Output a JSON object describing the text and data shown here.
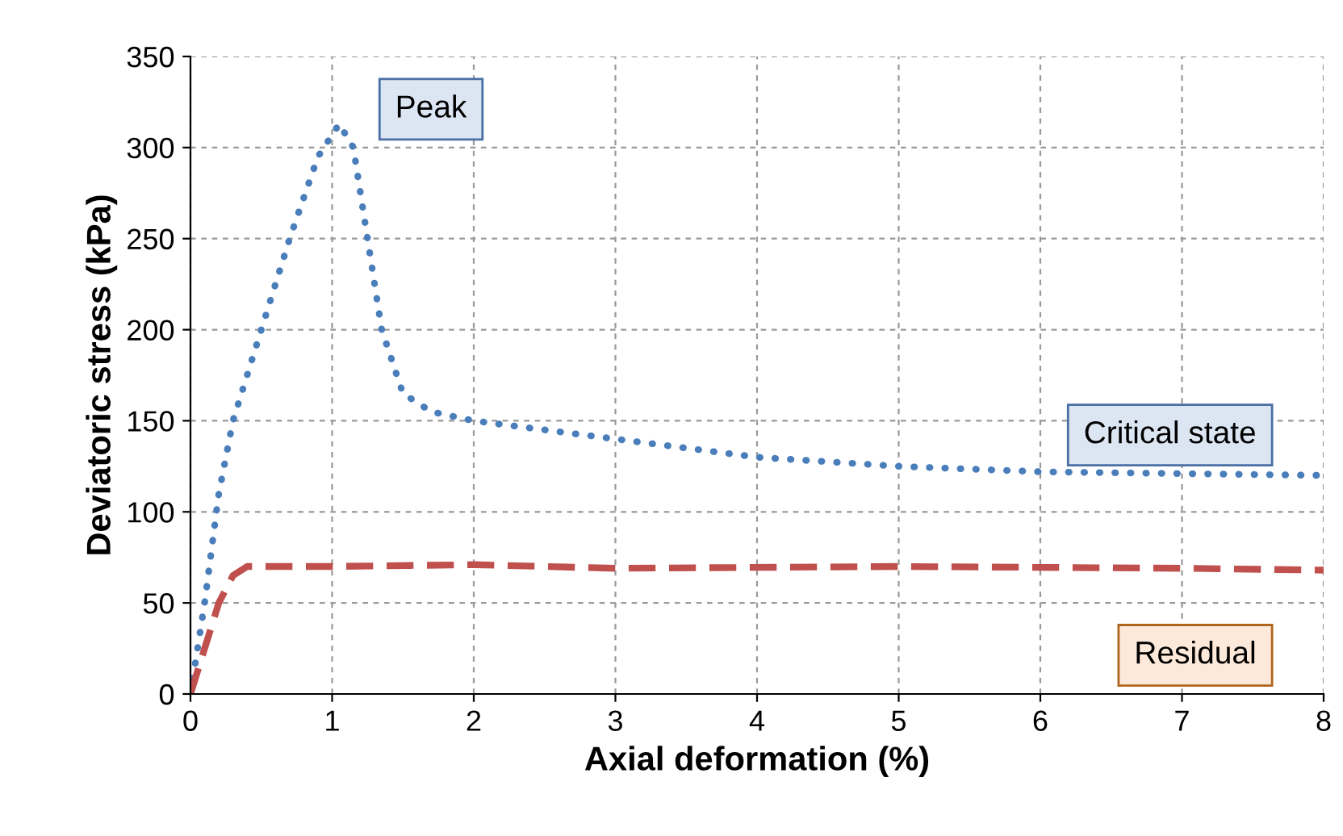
{
  "chart_data": {
    "type": "line",
    "xlabel": "Axial deformation (%)",
    "ylabel": "Deviatoric stress (kPa)",
    "xlim": [
      0,
      8
    ],
    "ylim": [
      0,
      350
    ],
    "xticks": [
      0,
      1,
      2,
      3,
      4,
      5,
      6,
      7,
      8
    ],
    "yticks": [
      0,
      50,
      100,
      150,
      200,
      250,
      300,
      350
    ],
    "grid": true,
    "series": [
      {
        "name": "Critical state",
        "color": "#4a7ebb",
        "line_style": "dotted",
        "x": [
          0,
          0.1,
          0.2,
          0.3,
          0.5,
          0.7,
          0.9,
          1.05,
          1.15,
          1.25,
          1.35,
          1.5,
          1.7,
          2,
          2.5,
          3,
          4,
          5,
          6,
          7,
          8
        ],
        "values": [
          0,
          50,
          110,
          150,
          200,
          250,
          295,
          313,
          300,
          250,
          200,
          165,
          155,
          150,
          145,
          140,
          130,
          125,
          122,
          121,
          120
        ]
      },
      {
        "name": "Residual",
        "color": "#c0504d",
        "line_style": "dashed",
        "x": [
          0,
          0.1,
          0.2,
          0.3,
          0.4,
          1,
          2,
          3,
          5,
          7,
          8
        ],
        "values": [
          0,
          25,
          50,
          65,
          70,
          70,
          71,
          69,
          70,
          69,
          68
        ]
      }
    ],
    "annotations": [
      {
        "text": "Peak",
        "x": 1.05,
        "y": 313
      }
    ]
  }
}
